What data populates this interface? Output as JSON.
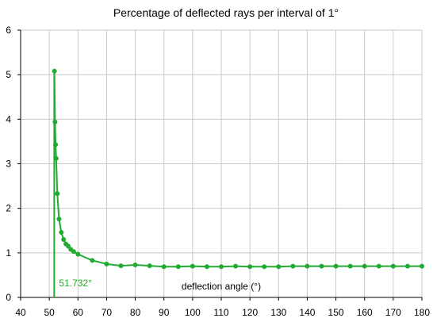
{
  "chart_data": {
    "type": "line",
    "title": "Percentage of deflected rays per interval of 1°",
    "xlabel": "deflection  angle  (°)",
    "ylabel": "",
    "xlim": [
      40,
      180
    ],
    "ylim": [
      0,
      6
    ],
    "xticks": [
      40,
      50,
      60,
      70,
      80,
      90,
      100,
      110,
      120,
      130,
      140,
      150,
      160,
      170,
      180
    ],
    "yticks": [
      0,
      1,
      2,
      3,
      4,
      5,
      6
    ],
    "grid": true,
    "line_color": "#22aa33",
    "annotation": {
      "x": 51.732,
      "label": "51.732°"
    },
    "series": [
      {
        "x": [
          51.8,
          52.0,
          52.2,
          52.4,
          52.8,
          53.4,
          54.2,
          55.0,
          55.8,
          56.6,
          57.5,
          58.5,
          60,
          65,
          70,
          75,
          80,
          85,
          90,
          95,
          100,
          105,
          110,
          115,
          120,
          125,
          130,
          135,
          140,
          145,
          150,
          155,
          160,
          165,
          170,
          175,
          180
        ],
        "values": [
          5.08,
          3.94,
          3.43,
          3.12,
          2.33,
          1.76,
          1.46,
          1.3,
          1.2,
          1.15,
          1.08,
          1.03,
          0.97,
          0.83,
          0.75,
          0.71,
          0.73,
          0.71,
          0.69,
          0.69,
          0.7,
          0.69,
          0.69,
          0.7,
          0.69,
          0.69,
          0.69,
          0.7,
          0.7,
          0.7,
          0.7,
          0.7,
          0.7,
          0.7,
          0.7,
          0.7,
          0.7
        ]
      }
    ]
  }
}
